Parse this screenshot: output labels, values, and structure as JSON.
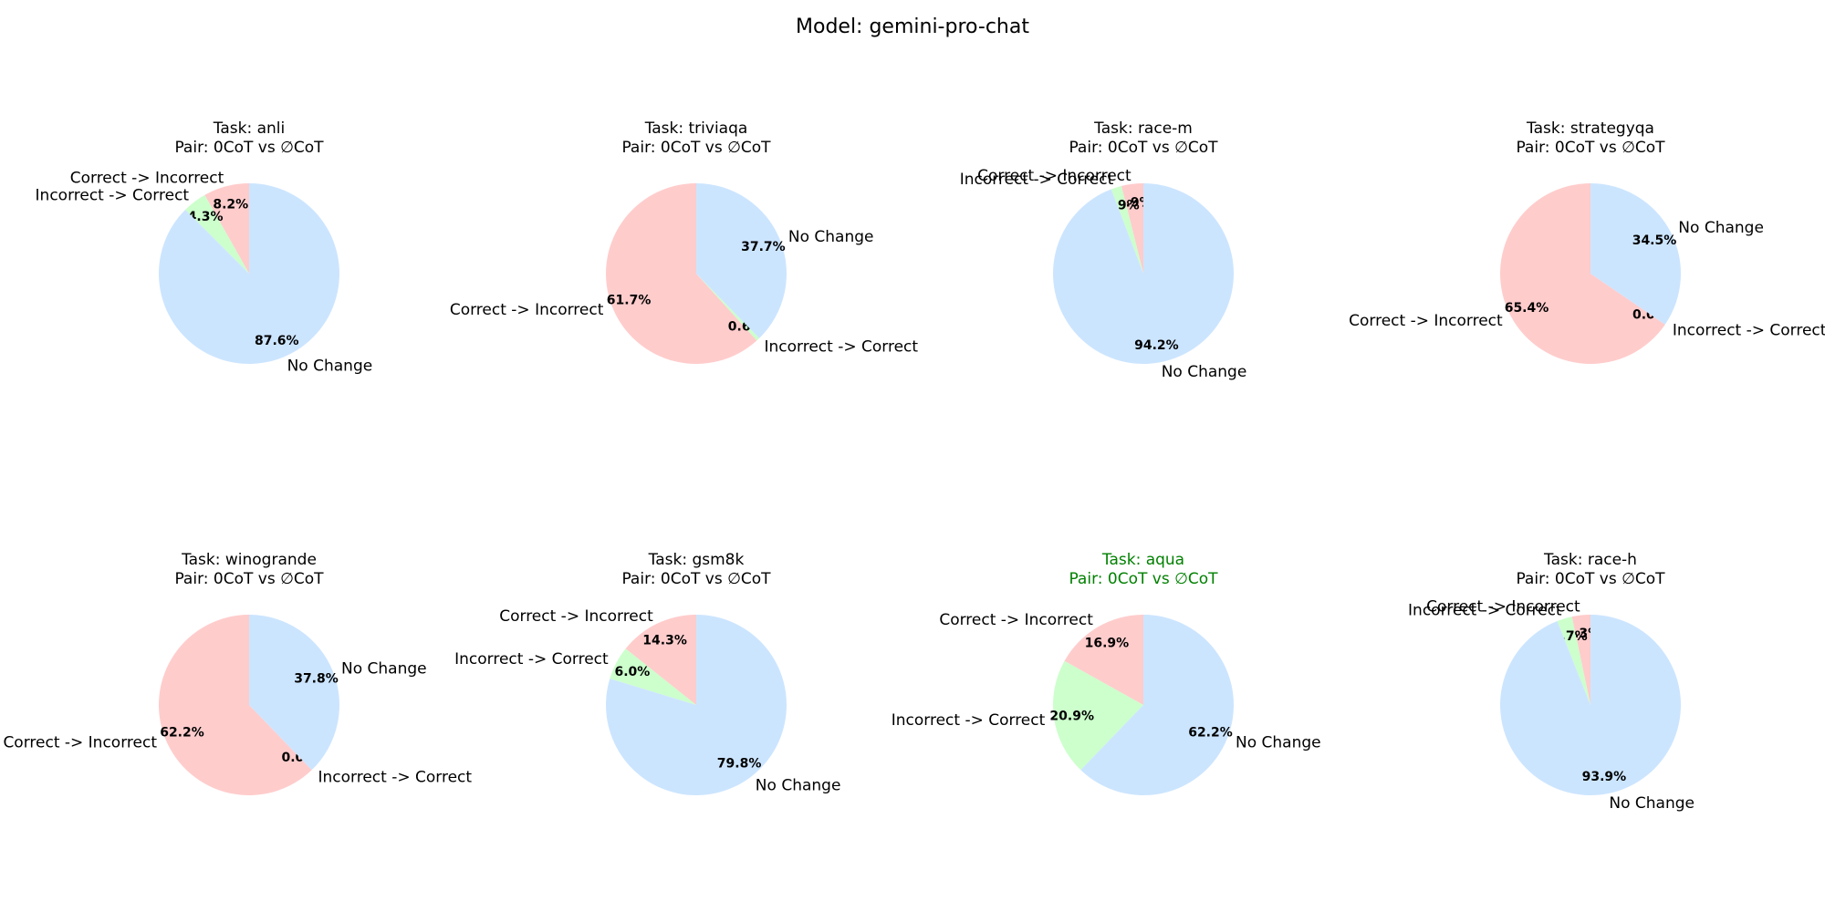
{
  "figure_title": "Model: gemini-pro-chat",
  "colors": {
    "Correct -> Incorrect": "#ffcccc",
    "Incorrect -> Correct": "#ccffcc",
    "No Change": "#cce5ff",
    "title_default": "#000000",
    "title_highlight": "#008000"
  },
  "chart_data": [
    {
      "type": "pie",
      "title": "Task: anli",
      "subtitle": "Pair: 0CoT vs ∅CoT",
      "highlight": false,
      "slices": [
        {
          "label": "Correct -> Incorrect",
          "value": 8.2,
          "pct": "8.2%"
        },
        {
          "label": "Incorrect -> Correct",
          "value": 4.3,
          "pct": "4.3%"
        },
        {
          "label": "No Change",
          "value": 87.6,
          "pct": "87.6%"
        }
      ]
    },
    {
      "type": "pie",
      "title": "Task: triviaqa",
      "subtitle": "Pair: 0CoT vs ∅CoT",
      "highlight": false,
      "slices": [
        {
          "label": "Correct -> Incorrect",
          "value": 61.7,
          "pct": "61.7%"
        },
        {
          "label": "Incorrect -> Correct",
          "value": 0.6,
          "pct": "0.6%"
        },
        {
          "label": "No Change",
          "value": 37.7,
          "pct": "37.7%"
        }
      ]
    },
    {
      "type": "pie",
      "title": "Task: race-m",
      "subtitle": "Pair: 0CoT vs ∅CoT",
      "highlight": false,
      "slices": [
        {
          "label": "Correct -> Incorrect",
          "value": 3.9,
          "pct": "3.9%"
        },
        {
          "label": "Incorrect -> Correct",
          "value": 1.9,
          "pct": "1.9%"
        },
        {
          "label": "No Change",
          "value": 94.2,
          "pct": "94.2%"
        }
      ]
    },
    {
      "type": "pie",
      "title": "Task: strategyqa",
      "subtitle": "Pair: 0CoT vs ∅CoT",
      "highlight": false,
      "slices": [
        {
          "label": "Correct -> Incorrect",
          "value": 65.4,
          "pct": "65.4%"
        },
        {
          "label": "Incorrect -> Correct",
          "value": 0.0,
          "pct": "0.0%"
        },
        {
          "label": "No Change",
          "value": 34.5,
          "pct": "34.5%"
        }
      ]
    },
    {
      "type": "pie",
      "title": "Task: winogrande",
      "subtitle": "Pair: 0CoT vs ∅CoT",
      "highlight": false,
      "slices": [
        {
          "label": "Correct -> Incorrect",
          "value": 62.2,
          "pct": "62.2%"
        },
        {
          "label": "Incorrect -> Correct",
          "value": 0.0,
          "pct": "0.0%"
        },
        {
          "label": "No Change",
          "value": 37.8,
          "pct": "37.8%"
        }
      ]
    },
    {
      "type": "pie",
      "title": "Task: gsm8k",
      "subtitle": "Pair: 0CoT vs ∅CoT",
      "highlight": false,
      "slices": [
        {
          "label": "Correct -> Incorrect",
          "value": 14.3,
          "pct": "14.3%"
        },
        {
          "label": "Incorrect -> Correct",
          "value": 6.0,
          "pct": "6.0%"
        },
        {
          "label": "No Change",
          "value": 79.8,
          "pct": "79.8%"
        }
      ]
    },
    {
      "type": "pie",
      "title": "Task: aqua",
      "subtitle": "Pair: 0CoT vs ∅CoT",
      "highlight": true,
      "slices": [
        {
          "label": "Correct -> Incorrect",
          "value": 16.9,
          "pct": "16.9%"
        },
        {
          "label": "Incorrect -> Correct",
          "value": 20.9,
          "pct": "20.9%"
        },
        {
          "label": "No Change",
          "value": 62.2,
          "pct": "62.2%"
        }
      ]
    },
    {
      "type": "pie",
      "title": "Task: race-h",
      "subtitle": "Pair: 0CoT vs ∅CoT",
      "highlight": false,
      "slices": [
        {
          "label": "Correct -> Incorrect",
          "value": 3.3,
          "pct": "3.3%"
        },
        {
          "label": "Incorrect -> Correct",
          "value": 2.7,
          "pct": "2.7%"
        },
        {
          "label": "No Change",
          "value": 93.9,
          "pct": "93.9%"
        }
      ]
    }
  ]
}
